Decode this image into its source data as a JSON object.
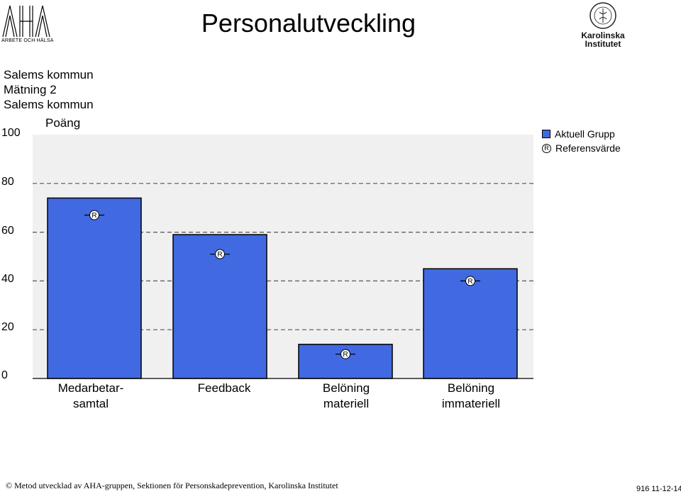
{
  "header": {
    "title": "Personalutveckling",
    "logo_left_text": "ARBETE OCH HÄLSA",
    "logo_right_line1": "Karolinska",
    "logo_right_line2": "Institutet"
  },
  "info": {
    "line1": "Salems kommun",
    "line2": "Mätning 2",
    "line3": "Salems kommun"
  },
  "legend": {
    "current": "Aktuell Grupp",
    "reference": "Referensvärde",
    "reference_symbol": "R"
  },
  "colors": {
    "bar": "#4169e1",
    "plot_bg": "#f0f0f0",
    "grid": "#555555"
  },
  "chart_data": {
    "type": "bar",
    "ylabel": "Poäng",
    "ylim": [
      0,
      100
    ],
    "yticks": [
      "0",
      "20",
      "40",
      "60",
      "80",
      "100"
    ],
    "grid": true,
    "legend_position": "top-right",
    "categories": [
      "Medarbetar-\nsamtal",
      "Feedback",
      "Belöning\nmateriell",
      "Belöning\nimmateriell"
    ],
    "series": [
      {
        "name": "Aktuell Grupp",
        "values": [
          74,
          59,
          14,
          45
        ]
      },
      {
        "name": "Referensvärde",
        "values": [
          67,
          51,
          10,
          40
        ]
      }
    ]
  },
  "footer": {
    "credit": "© Metod utvecklad av AHA-gruppen, Sektionen för Personskadeprevention, Karolinska Institutet",
    "code": "916 11-12-14"
  }
}
